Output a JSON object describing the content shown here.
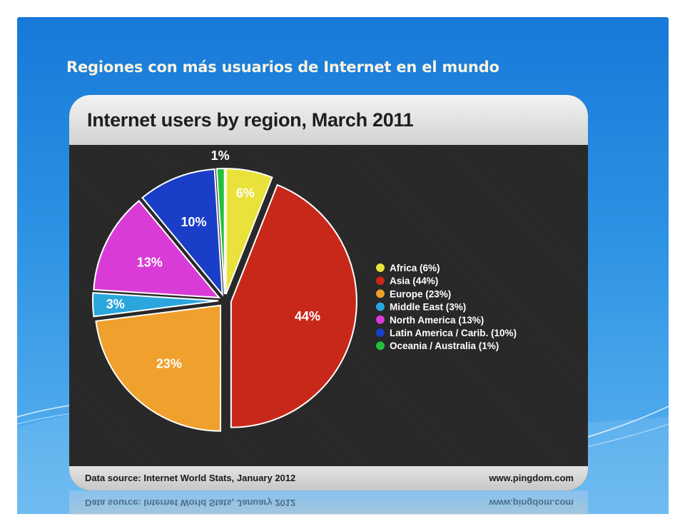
{
  "slide": {
    "title": "Regiones con más usuarios de Internet en el mundo"
  },
  "card": {
    "heading": "Internet users by region, March 2011",
    "source": "Data source: Internet World Stats, January 2012",
    "url": "www.pingdom.com"
  },
  "chart_data": {
    "type": "pie",
    "title": "Internet users by region, March 2011",
    "legend_position": "right",
    "slices": [
      {
        "label": "Africa (6%)",
        "short": "6%",
        "value": 6,
        "color": "#e8e23a"
      },
      {
        "label": "Asia (44%)",
        "short": "44%",
        "value": 44,
        "color": "#c8281a"
      },
      {
        "label": "Europe (23%)",
        "short": "23%",
        "value": 23,
        "color": "#f0a02c"
      },
      {
        "label": "Middle East (3%)",
        "short": "3%",
        "value": 3,
        "color": "#2aa6dc"
      },
      {
        "label": "North America (13%)",
        "short": "13%",
        "value": 13,
        "color": "#d93cd6"
      },
      {
        "label": "Latin America / Carib. (10%)",
        "short": "10%",
        "value": 10,
        "color": "#1a3ec8"
      },
      {
        "label": "Oceania / Australia (1%)",
        "short": "1%",
        "value": 1,
        "color": "#22c03a"
      }
    ]
  }
}
